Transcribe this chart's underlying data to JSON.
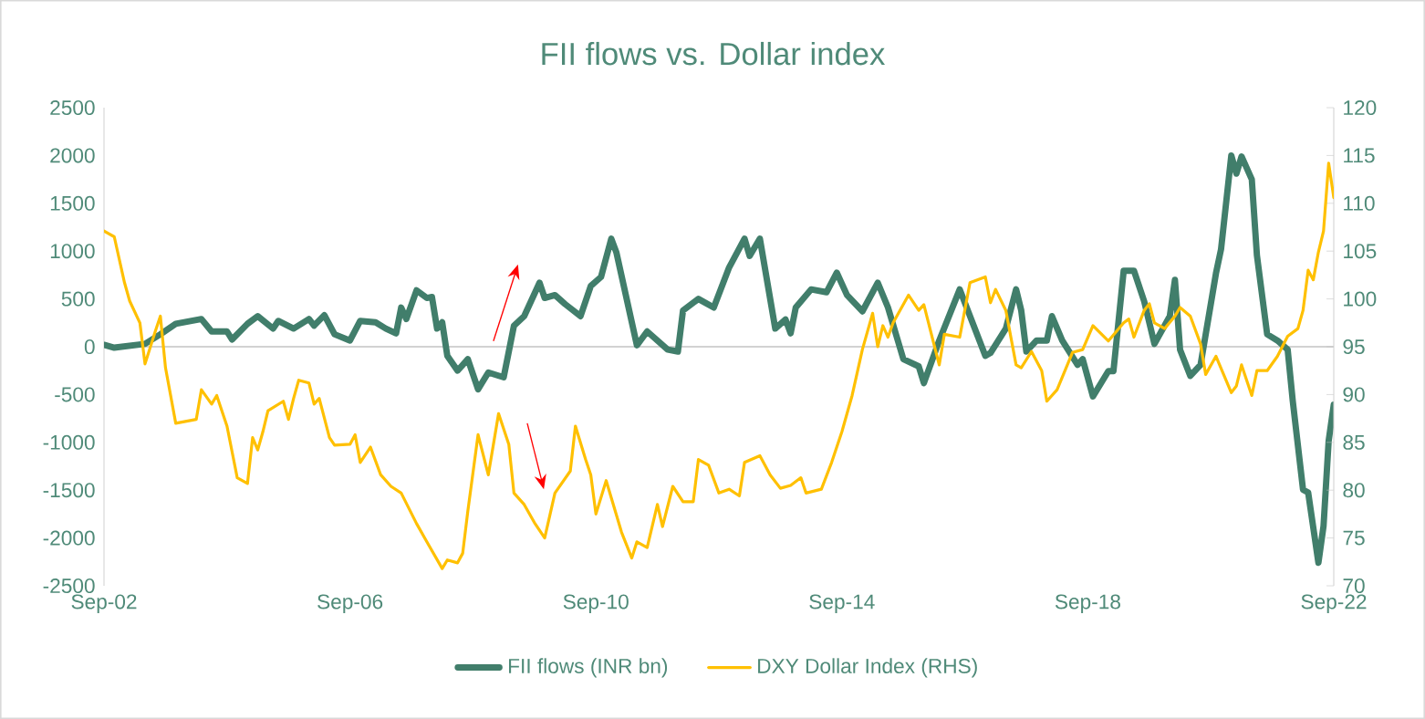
{
  "chart_data": {
    "type": "line",
    "title": "FII flows vs. Dollar index",
    "series": [
      {
        "name": "FII flows (INR bn)",
        "color": "#417e6b",
        "axis": "y",
        "x": [
          "2002-09",
          "2002-11",
          "2003-05",
          "2003-08",
          "2003-11",
          "2004-04",
          "2004-06",
          "2004-09",
          "2004-10",
          "2005-01",
          "2005-03",
          "2005-06",
          "2005-07",
          "2005-10",
          "2006-01",
          "2006-02",
          "2006-04",
          "2006-06",
          "2006-09",
          "2006-11",
          "2007-02",
          "2007-04",
          "2007-06",
          "2007-07",
          "2007-08",
          "2007-10",
          "2007-12",
          "2008-01",
          "2008-02",
          "2008-03",
          "2008-04",
          "2008-06",
          "2008-08",
          "2008-10",
          "2008-12",
          "2009-03",
          "2009-05",
          "2009-07",
          "2009-10",
          "2009-11",
          "2010-01",
          "2010-03",
          "2010-06",
          "2010-08",
          "2010-10",
          "2010-12",
          "2011-01",
          "2011-05",
          "2011-07",
          "2011-11",
          "2012-01",
          "2012-02",
          "2012-05",
          "2012-08",
          "2012-11",
          "2013-02",
          "2013-03",
          "2013-05",
          "2013-08",
          "2013-10",
          "2013-11",
          "2013-12",
          "2014-03",
          "2014-06",
          "2014-08",
          "2014-10",
          "2015-01",
          "2015-04",
          "2015-06",
          "2015-09",
          "2015-12",
          "2016-01",
          "2016-04",
          "2016-08",
          "2017-01",
          "2017-02",
          "2017-05",
          "2017-07",
          "2017-08",
          "2017-09",
          "2017-11",
          "2018-01",
          "2018-02",
          "2018-04",
          "2018-07",
          "2018-08",
          "2018-10",
          "2019-01",
          "2019-02",
          "2019-04",
          "2019-06",
          "2019-08",
          "2019-10",
          "2020-01",
          "2020-02",
          "2020-03",
          "2020-05",
          "2020-07",
          "2020-10",
          "2020-11",
          "2021-01",
          "2021-02",
          "2021-03",
          "2021-05",
          "2021-06",
          "2021-08",
          "2021-10",
          "2021-12",
          "2022-01",
          "2022-03",
          "2022-04",
          "2022-06",
          "2022-07",
          "2022-08",
          "2022-09"
        ],
        "values": [
          20,
          -10,
          30,
          130,
          240,
          290,
          160,
          160,
          75,
          240,
          320,
          190,
          270,
          190,
          290,
          220,
          330,
          130,
          65,
          270,
          255,
          190,
          140,
          410,
          290,
          590,
          510,
          520,
          190,
          255,
          -95,
          -250,
          -130,
          -445,
          -270,
          -320,
          220,
          320,
          670,
          510,
          540,
          445,
          320,
          635,
          730,
          1130,
          985,
          15,
          160,
          -30,
          -50,
          380,
          500,
          410,
          830,
          1130,
          950,
          1130,
          190,
          285,
          140,
          410,
          600,
          570,
          775,
          540,
          370,
          670,
          410,
          -130,
          -205,
          -380,
          65,
          600,
          -95,
          -65,
          190,
          600,
          380,
          -50,
          65,
          65,
          320,
          65,
          -190,
          -130,
          -520,
          -255,
          -255,
          795,
          795,
          475,
          30,
          320,
          700,
          -30,
          -305,
          -190,
          765,
          1020,
          2000,
          1810,
          1990,
          1750,
          955,
          130,
          65,
          -30,
          -570,
          -1495,
          -1525,
          -2260,
          -1875,
          -985,
          -605
        ]
      },
      {
        "name": "DXY Dollar Index (RHS)",
        "color": "#ffc000",
        "axis": "y2",
        "x": [
          "2002-09",
          "2002-11",
          "2003-01",
          "2003-02",
          "2003-04",
          "2003-05",
          "2003-07",
          "2003-08",
          "2003-09",
          "2003-11",
          "2004-03",
          "2004-04",
          "2004-06",
          "2004-07",
          "2004-09",
          "2004-11",
          "2005-01",
          "2005-02",
          "2005-03",
          "2005-04",
          "2005-05",
          "2005-08",
          "2005-09",
          "2005-10",
          "2005-11",
          "2006-01",
          "2006-02",
          "2006-03",
          "2006-05",
          "2006-06",
          "2006-09",
          "2006-10",
          "2006-11",
          "2007-01",
          "2007-03",
          "2007-05",
          "2007-07",
          "2007-10",
          "2007-12",
          "2008-03",
          "2008-04",
          "2008-06",
          "2008-07",
          "2008-08",
          "2008-10",
          "2008-12",
          "2009-02",
          "2009-04",
          "2009-05",
          "2009-07",
          "2009-09",
          "2009-11",
          "2010-01",
          "2010-04",
          "2010-05",
          "2010-07",
          "2010-08",
          "2010-09",
          "2010-11",
          "2011-02",
          "2011-04",
          "2011-05",
          "2011-07",
          "2011-09",
          "2011-10",
          "2011-12",
          "2012-02",
          "2012-04",
          "2012-05",
          "2012-07",
          "2012-09",
          "2012-11",
          "2013-01",
          "2013-02",
          "2013-05",
          "2013-07",
          "2013-09",
          "2013-11",
          "2014-01",
          "2014-02",
          "2014-05",
          "2014-07",
          "2014-09",
          "2014-11",
          "2015-01",
          "2015-03",
          "2015-04",
          "2015-05",
          "2015-06",
          "2015-07",
          "2015-10",
          "2015-12",
          "2016-01",
          "2016-04",
          "2016-05",
          "2016-08",
          "2016-10",
          "2017-01",
          "2017-02",
          "2017-03",
          "2017-05",
          "2017-07",
          "2017-08",
          "2017-10",
          "2017-12",
          "2018-01",
          "2018-03",
          "2018-06",
          "2018-08",
          "2018-10",
          "2019-01",
          "2019-04",
          "2019-05",
          "2019-06",
          "2019-08",
          "2019-09",
          "2019-10",
          "2019-12",
          "2020-02",
          "2020-03",
          "2020-05",
          "2020-07",
          "2020-08",
          "2020-10",
          "2021-01",
          "2021-02",
          "2021-03",
          "2021-05",
          "2021-06",
          "2021-08",
          "2021-10",
          "2021-12",
          "2022-02",
          "2022-03",
          "2022-04",
          "2022-05",
          "2022-06",
          "2022-07",
          "2022-08",
          "2022-09"
        ],
        "values": [
          107.1,
          106.5,
          101.7,
          99.8,
          97.5,
          93.2,
          96.6,
          98.2,
          92.8,
          87.0,
          87.4,
          90.5,
          89.0,
          89.9,
          86.7,
          81.3,
          80.7,
          85.5,
          84.2,
          86.1,
          88.3,
          89.3,
          87.4,
          89.6,
          91.5,
          91.2,
          89.0,
          89.6,
          85.5,
          84.7,
          84.8,
          85.8,
          82.9,
          84.5,
          81.6,
          80.4,
          79.7,
          76.5,
          74.6,
          71.8,
          72.7,
          72.4,
          73.4,
          77.8,
          85.8,
          81.6,
          88.0,
          84.8,
          79.7,
          78.5,
          76.6,
          75.0,
          79.7,
          82.0,
          86.7,
          83.2,
          81.6,
          77.5,
          81.0,
          75.6,
          72.9,
          74.6,
          74.0,
          78.5,
          76.2,
          80.4,
          78.8,
          78.8,
          83.2,
          82.6,
          79.7,
          80.1,
          79.4,
          82.9,
          83.6,
          81.6,
          80.2,
          80.5,
          81.3,
          79.7,
          80.1,
          82.9,
          86.1,
          89.9,
          94.7,
          98.5,
          95.0,
          97.2,
          96.0,
          97.5,
          100.4,
          98.8,
          99.4,
          93.1,
          96.3,
          96.0,
          101.7,
          102.3,
          99.6,
          101.0,
          98.8,
          93.1,
          92.8,
          94.5,
          92.5,
          89.3,
          90.5,
          94.4,
          94.7,
          97.2,
          95.6,
          97.5,
          97.9,
          96.0,
          98.8,
          99.5,
          97.5,
          96.9,
          98.2,
          99.1,
          98.2,
          95.3,
          92.1,
          94.0,
          90.2,
          90.9,
          93.1,
          89.9,
          92.5,
          92.5,
          94.0,
          96.1,
          96.9,
          98.8,
          103.0,
          102.0,
          104.9,
          107.1,
          114.2,
          110.6
        ]
      }
    ],
    "xlim": [
      "2002-09",
      "2022-09"
    ],
    "xticks": [
      {
        "value": "2002-09",
        "label": "Sep-02"
      },
      {
        "value": "2006-09",
        "label": "Sep-06"
      },
      {
        "value": "2010-09",
        "label": "Sep-10"
      },
      {
        "value": "2014-09",
        "label": "Sep-14"
      },
      {
        "value": "2018-09",
        "label": "Sep-18"
      },
      {
        "value": "2022-09",
        "label": "Sep-22"
      }
    ],
    "ylim": [
      -2500,
      2500
    ],
    "yticks": [
      -2500,
      -2000,
      -1500,
      -1000,
      -500,
      0,
      500,
      1000,
      1500,
      2000,
      2500
    ],
    "y2lim": [
      70,
      120
    ],
    "y2ticks": [
      70,
      75,
      80,
      85,
      90,
      95,
      100,
      105,
      110,
      115,
      120
    ],
    "legend": "bottom"
  }
}
